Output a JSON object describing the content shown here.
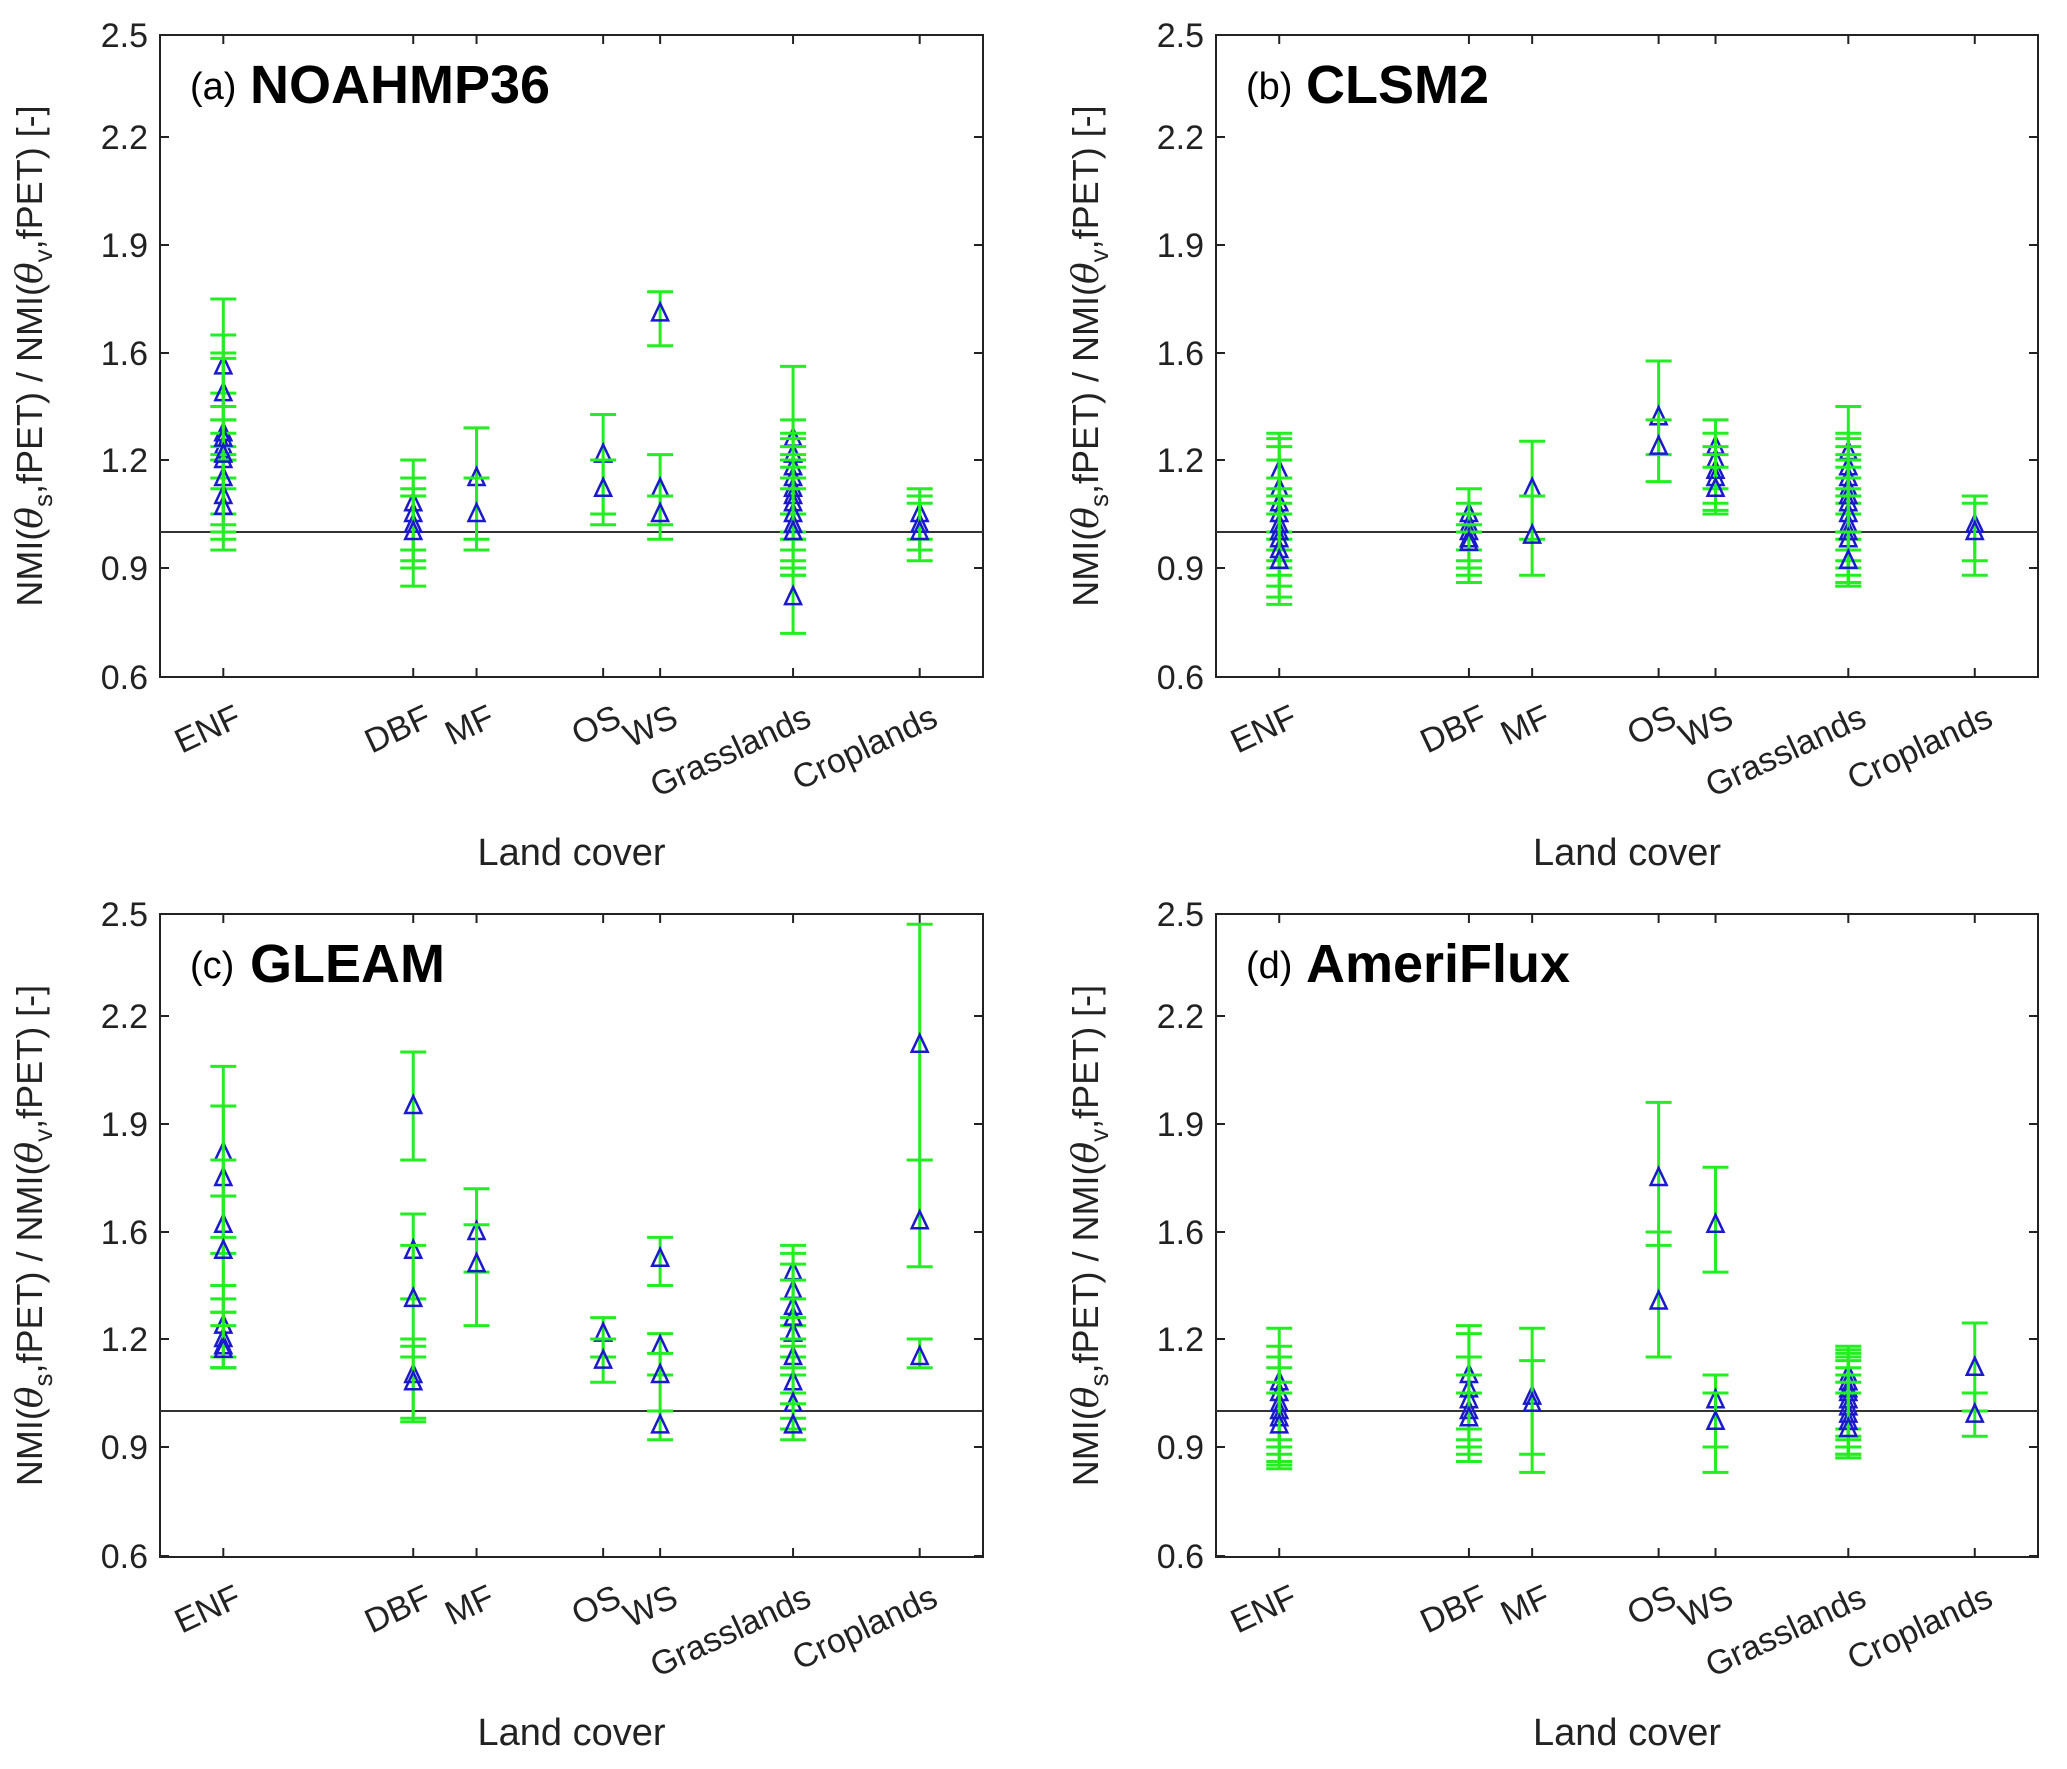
{
  "figure": {
    "reference_label": "ref = 1",
    "colors": {
      "errorbar": "#22ee22",
      "marker": "#1a1acc",
      "axis": "#222222",
      "refline": "#333333"
    }
  },
  "chart_data": [
    {
      "type": "scatter",
      "panel_label": "(a)",
      "title": "NOAHMP36",
      "xlabel": "Land cover",
      "ylabel": {
        "prefix": "NMI(",
        "theta": "θ",
        "sub1": "s",
        "mid": ",fPET) / NMI(",
        "sub2": "v",
        "suffix": ",fPET) [-]"
      },
      "categories": [
        "ENF",
        "DBF",
        "MF",
        "OS",
        "WS",
        "Grasslands",
        "Croplands"
      ],
      "category_positions": [
        1,
        2.5,
        3,
        4,
        4.45,
        5.5,
        6.5
      ],
      "xlim": [
        0.5,
        7
      ],
      "ylim": [
        0.6,
        2.5
      ],
      "yticks": [
        "0.6",
        "0.9",
        "1.2",
        "1.6",
        "1.9",
        "2.2",
        "2.5"
      ],
      "reference_line": 1.0,
      "series": [
        {
          "category": "ENF",
          "points": [
            [
              1.55,
              1.45,
              1.65
            ],
            [
              1.45,
              1.35,
              1.58
            ],
            [
              1.3,
              1.2,
              1.4
            ],
            [
              1.25,
              1.15,
              1.35
            ],
            [
              1.2,
              1.12,
              1.3
            ],
            [
              1.15,
              1.05,
              1.25
            ],
            [
              1.1,
              0.98,
              1.22
            ],
            [
              1.07,
              0.95,
              1.2
            ],
            [
              1.28,
              1.02,
              1.75
            ],
            [
              1.22,
              1.0,
              1.6
            ]
          ]
        },
        {
          "category": "DBF",
          "points": [
            [
              1.08,
              0.95,
              1.2
            ],
            [
              1.05,
              0.9,
              1.15
            ],
            [
              1.02,
              0.92,
              1.1
            ],
            [
              1.0,
              0.85,
              1.12
            ]
          ]
        },
        {
          "category": "MF",
          "points": [
            [
              1.15,
              0.98,
              1.32
            ],
            [
              1.05,
              0.95,
              1.15
            ]
          ]
        },
        {
          "category": "OS",
          "points": [
            [
              1.22,
              1.02,
              1.37
            ],
            [
              1.12,
              1.05,
              1.2
            ]
          ]
        },
        {
          "category": "WS",
          "points": [
            [
              1.71,
              1.62,
              1.77
            ],
            [
              1.12,
              1.02,
              1.22
            ],
            [
              1.05,
              0.98,
              1.1
            ]
          ]
        },
        {
          "category": "Grasslands",
          "points": [
            [
              1.28,
              1.05,
              1.55
            ],
            [
              1.22,
              1.05,
              1.35
            ],
            [
              1.18,
              1.0,
              1.3
            ],
            [
              1.15,
              0.98,
              1.28
            ],
            [
              1.12,
              0.98,
              1.25
            ],
            [
              1.1,
              0.95,
              1.22
            ],
            [
              1.08,
              0.92,
              1.2
            ],
            [
              1.05,
              0.9,
              1.18
            ],
            [
              1.02,
              0.88,
              1.15
            ],
            [
              1.0,
              0.88,
              1.12
            ],
            [
              0.82,
              0.72,
              0.9
            ]
          ]
        },
        {
          "category": "Croplands",
          "points": [
            [
              1.05,
              0.98,
              1.12
            ],
            [
              1.02,
              0.95,
              1.1
            ],
            [
              1.0,
              0.92,
              1.08
            ]
          ]
        }
      ]
    },
    {
      "type": "scatter",
      "panel_label": "(b)",
      "title": "CLSM2",
      "xlabel": "Land cover",
      "ylabel": {
        "prefix": "NMI(",
        "theta": "θ",
        "sub1": "s",
        "mid": ",fPET) / NMI(",
        "sub2": "v",
        "suffix": ",fPET) [-]"
      },
      "categories": [
        "ENF",
        "DBF",
        "MF",
        "OS",
        "WS",
        "Grasslands",
        "Croplands"
      ],
      "category_positions": [
        1,
        2.5,
        3,
        4,
        4.45,
        5.5,
        6.5
      ],
      "xlim": [
        0.5,
        7
      ],
      "ylim": [
        0.6,
        2.5
      ],
      "yticks": [
        "0.6",
        "0.9",
        "1.2",
        "1.6",
        "1.9",
        "2.2",
        "2.5"
      ],
      "reference_line": 1.0,
      "series": [
        {
          "category": "ENF",
          "points": [
            [
              1.17,
              1.0,
              1.3
            ],
            [
              1.12,
              0.98,
              1.28
            ],
            [
              1.08,
              0.95,
              1.25
            ],
            [
              1.05,
              0.92,
              1.2
            ],
            [
              1.02,
              0.9,
              1.15
            ],
            [
              1.0,
              0.88,
              1.12
            ],
            [
              0.98,
              0.85,
              1.1
            ],
            [
              0.95,
              0.82,
              1.08
            ],
            [
              0.92,
              0.8,
              1.05
            ]
          ]
        },
        {
          "category": "DBF",
          "points": [
            [
              1.05,
              0.95,
              1.12
            ],
            [
              1.02,
              0.92,
              1.08
            ],
            [
              1.0,
              0.9,
              1.05
            ],
            [
              0.98,
              0.88,
              1.02
            ],
            [
              0.97,
              0.86,
              1.0
            ]
          ]
        },
        {
          "category": "MF",
          "points": [
            [
              1.12,
              0.98,
              1.27
            ],
            [
              0.99,
              0.88,
              1.1
            ]
          ]
        },
        {
          "category": "OS",
          "points": [
            [
              1.36,
              1.22,
              1.57
            ],
            [
              1.25,
              1.14,
              1.35
            ]
          ]
        },
        {
          "category": "WS",
          "points": [
            [
              1.25,
              1.12,
              1.35
            ],
            [
              1.2,
              1.08,
              1.3
            ],
            [
              1.17,
              1.05,
              1.25
            ],
            [
              1.15,
              1.05,
              1.22
            ],
            [
              1.12,
              1.06,
              1.18
            ]
          ]
        },
        {
          "category": "Grasslands",
          "points": [
            [
              1.23,
              1.08,
              1.4
            ],
            [
              1.18,
              1.05,
              1.3
            ],
            [
              1.15,
              1.0,
              1.28
            ],
            [
              1.12,
              0.98,
              1.25
            ],
            [
              1.1,
              0.95,
              1.22
            ],
            [
              1.08,
              0.92,
              1.2
            ],
            [
              1.05,
              0.9,
              1.18
            ],
            [
              1.02,
              0.88,
              1.15
            ],
            [
              1.0,
              0.86,
              1.12
            ],
            [
              0.98,
              0.85,
              1.1
            ],
            [
              0.92,
              0.85,
              1.0
            ]
          ]
        },
        {
          "category": "Croplands",
          "points": [
            [
              1.02,
              0.92,
              1.1
            ],
            [
              1.0,
              0.88,
              1.08
            ]
          ]
        }
      ]
    },
    {
      "type": "scatter",
      "panel_label": "(c)",
      "title": "GLEAM",
      "xlabel": "Land cover",
      "ylabel": {
        "prefix": "NMI(",
        "theta": "θ",
        "sub1": "s",
        "mid": ",fPET) / NMI(",
        "sub2": "v",
        "suffix": ",fPET) [-]"
      },
      "categories": [
        "ENF",
        "DBF",
        "MF",
        "OS",
        "WS",
        "Grasslands",
        "Croplands"
      ],
      "category_positions": [
        1,
        2.5,
        3,
        4,
        4.45,
        5.5,
        6.5
      ],
      "xlim": [
        0.5,
        7
      ],
      "ylim": [
        0.6,
        2.5
      ],
      "yticks": [
        "0.6",
        "0.9",
        "1.2",
        "1.6",
        "1.9",
        "2.2",
        "2.5"
      ],
      "reference_line": 1.0,
      "series": [
        {
          "category": "ENF",
          "points": [
            [
              1.82,
              1.58,
              2.06
            ],
            [
              1.75,
              1.52,
              1.95
            ],
            [
              1.62,
              1.4,
              1.8
            ],
            [
              1.53,
              1.3,
              1.7
            ],
            [
              1.25,
              1.15,
              1.4
            ],
            [
              1.2,
              1.12,
              1.35
            ],
            [
              1.18,
              1.12,
              1.3
            ],
            [
              1.17,
              1.12,
              1.25
            ]
          ]
        },
        {
          "category": "DBF",
          "points": [
            [
              1.95,
              1.8,
              2.1
            ],
            [
              1.53,
              1.35,
              1.65
            ],
            [
              1.35,
              1.15,
              1.55
            ],
            [
              1.1,
              0.98,
              1.2
            ],
            [
              1.08,
              0.97,
              1.18
            ]
          ]
        },
        {
          "category": "MF",
          "points": [
            [
              1.6,
              1.45,
              1.72
            ],
            [
              1.48,
              1.25,
              1.62
            ]
          ]
        },
        {
          "category": "OS",
          "points": [
            [
              1.22,
              1.15,
              1.28
            ],
            [
              1.14,
              1.08,
              1.2
            ]
          ]
        },
        {
          "category": "WS",
          "points": [
            [
              1.5,
              1.4,
              1.58
            ],
            [
              1.18,
              1.1,
              1.22
            ],
            [
              1.1,
              1.0,
              1.16
            ],
            [
              0.96,
              0.92,
              1.0
            ]
          ]
        },
        {
          "category": "Grasslands",
          "points": [
            [
              1.45,
              1.25,
              1.55
            ],
            [
              1.38,
              1.2,
              1.52
            ],
            [
              1.32,
              1.18,
              1.48
            ],
            [
              1.28,
              1.15,
              1.42
            ],
            [
              1.22,
              1.1,
              1.35
            ],
            [
              1.15,
              1.05,
              1.28
            ],
            [
              1.08,
              0.98,
              1.2
            ],
            [
              1.02,
              0.95,
              1.12
            ],
            [
              0.96,
              0.92,
              1.02
            ]
          ]
        },
        {
          "category": "Croplands",
          "points": [
            [
              2.12,
              1.8,
              2.47
            ],
            [
              1.63,
              1.47,
              1.8
            ],
            [
              1.15,
              1.12,
              1.2
            ]
          ]
        }
      ]
    },
    {
      "type": "scatter",
      "panel_label": "(d)",
      "title": "AmeriFlux",
      "xlabel": "Land cover",
      "ylabel": {
        "prefix": "NMI(",
        "theta": "θ",
        "sub1": "s",
        "mid": ",fPET) / NMI(",
        "sub2": "v",
        "suffix": ",fPET) [-]"
      },
      "categories": [
        "ENF",
        "DBF",
        "MF",
        "OS",
        "WS",
        "Grasslands",
        "Croplands"
      ],
      "category_positions": [
        1,
        2.5,
        3,
        4,
        4.45,
        5.5,
        6.5
      ],
      "xlim": [
        0.5,
        7
      ],
      "ylim": [
        0.6,
        2.5
      ],
      "yticks": [
        "0.6",
        "0.9",
        "1.2",
        "1.6",
        "1.9",
        "2.2",
        "2.5"
      ],
      "reference_line": 1.0,
      "series": [
        {
          "category": "ENF",
          "points": [
            [
              1.08,
              0.92,
              1.24
            ],
            [
              1.05,
              0.9,
              1.18
            ],
            [
              1.02,
              0.88,
              1.15
            ],
            [
              1.0,
              0.86,
              1.12
            ],
            [
              0.98,
              0.85,
              1.08
            ],
            [
              0.96,
              0.84,
              1.05
            ]
          ]
        },
        {
          "category": "DBF",
          "points": [
            [
              1.1,
              0.95,
              1.25
            ],
            [
              1.06,
              0.92,
              1.22
            ],
            [
              1.03,
              0.9,
              1.15
            ],
            [
              1.0,
              0.88,
              1.1
            ],
            [
              0.98,
              0.86,
              1.05
            ]
          ]
        },
        {
          "category": "MF",
          "points": [
            [
              1.04,
              0.88,
              1.24
            ],
            [
              1.02,
              0.83,
              1.14
            ]
          ]
        },
        {
          "category": "OS",
          "points": [
            [
              1.75,
              1.55,
              1.96
            ],
            [
              1.34,
              1.15,
              1.6
            ]
          ]
        },
        {
          "category": "WS",
          "points": [
            [
              1.62,
              1.45,
              1.78
            ],
            [
              1.03,
              0.9,
              1.1
            ],
            [
              0.97,
              0.83,
              1.05
            ]
          ]
        },
        {
          "category": "Grasslands",
          "points": [
            [
              1.1,
              0.95,
              1.18
            ],
            [
              1.08,
              0.93,
              1.17
            ],
            [
              1.06,
              0.92,
              1.16
            ],
            [
              1.05,
              0.9,
              1.15
            ],
            [
              1.03,
              0.9,
              1.14
            ],
            [
              1.01,
              0.88,
              1.12
            ],
            [
              0.99,
              0.88,
              1.1
            ],
            [
              0.97,
              0.87,
              1.08
            ],
            [
              0.95,
              0.87,
              1.05
            ]
          ]
        },
        {
          "category": "Croplands",
          "points": [
            [
              1.12,
              1.0,
              1.26
            ],
            [
              0.99,
              0.93,
              1.05
            ]
          ]
        }
      ]
    }
  ]
}
